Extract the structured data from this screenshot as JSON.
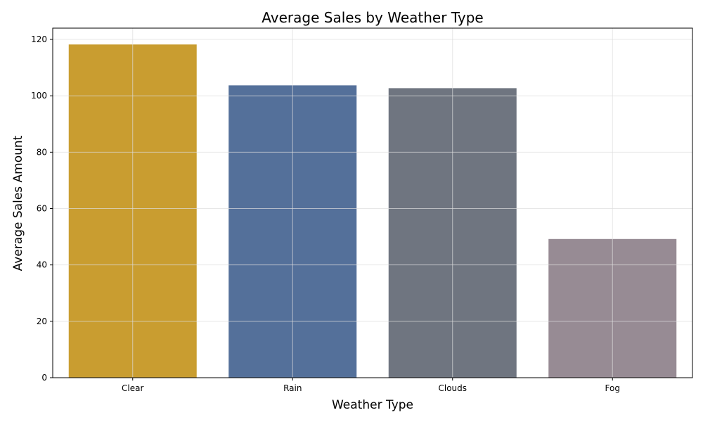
{
  "chart_data": {
    "type": "bar",
    "title": "Average Sales by Weather Type",
    "xlabel": "Weather Type",
    "ylabel": "Average Sales Amount",
    "categories": [
      "Clear",
      "Rain",
      "Clouds",
      "Fog"
    ],
    "values": [
      118.2,
      103.7,
      102.7,
      49.2
    ],
    "colors": [
      "#c99d30",
      "#54709a",
      "#6f7580",
      "#978b94"
    ],
    "ylim": [
      0,
      124
    ],
    "yticks": [
      0,
      20,
      40,
      60,
      80,
      100,
      120
    ],
    "grid": true,
    "legend": "none"
  }
}
